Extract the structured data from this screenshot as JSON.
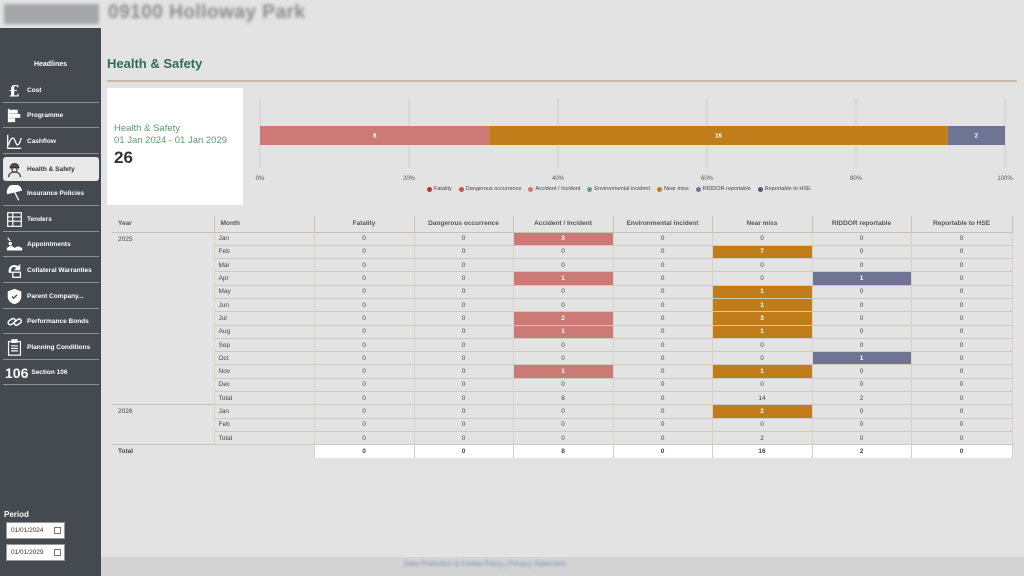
{
  "site": {
    "title": "09100 Holloway Park"
  },
  "sidebar": {
    "headlines_label": "Headlines",
    "items": [
      {
        "label": "Cost",
        "icon": "pound-icon"
      },
      {
        "label": "Programme",
        "icon": "programme-icon"
      },
      {
        "label": "Cashflow",
        "icon": "cashflow-icon"
      },
      {
        "label": "Health & Safety",
        "icon": "worker-icon",
        "active": true
      },
      {
        "label": "Insurance Policies",
        "icon": "umbrella-icon"
      },
      {
        "label": "Tenders",
        "icon": "tenders-icon"
      },
      {
        "label": "Appointments",
        "icon": "appointments-icon"
      },
      {
        "label": "Collateral Warranties",
        "icon": "warranties-icon"
      },
      {
        "label": "Parent Company...",
        "icon": "shield-icon"
      },
      {
        "label": "Performance Bonds",
        "icon": "bonds-icon"
      },
      {
        "label": "Planning Conditions",
        "icon": "clipboard-icon"
      },
      {
        "label": "Section 106",
        "icon_text": "106"
      }
    ],
    "period": {
      "label": "Period",
      "start": "01/01/2024",
      "end": "01/01/2029"
    }
  },
  "page": {
    "title": "Health & Safety"
  },
  "summary": {
    "title": "Health & Safety",
    "range": "01 Jan 2024 - 01 Jan 2029",
    "total": "26"
  },
  "colors": {
    "fatality": "#b03a2e",
    "dangerous": "#c9524a",
    "accident": "#cc7a75",
    "environmental": "#6b9e7a",
    "nearmiss": "#c27d1b",
    "riddor": "#6f7494",
    "hse": "#4a5a78"
  },
  "chart_data": {
    "type": "bar",
    "orientation": "horizontal-stacked-percent",
    "series": [
      {
        "name": "Fatality",
        "value": 0
      },
      {
        "name": "Dangerous occurrence",
        "value": 0
      },
      {
        "name": "Accident / Incident",
        "value": 8
      },
      {
        "name": "Environmental incident",
        "value": 0
      },
      {
        "name": "Near miss",
        "value": 16
      },
      {
        "name": "RIDDOR reportable",
        "value": 2
      },
      {
        "name": "Reportable to HSE",
        "value": 0
      }
    ],
    "xlim": [
      0,
      100
    ],
    "x_ticks": [
      "0%",
      "20%",
      "40%",
      "60%",
      "80%",
      "100%"
    ],
    "grid": true,
    "legend": "bottom"
  },
  "table": {
    "headers": [
      "Year",
      "Month",
      "Fatality",
      "Dangerous occurrence",
      "Accident / Incident",
      "Environmental incident",
      "Near miss",
      "RIDDOR reportable",
      "Reportable to HSE"
    ],
    "groups": [
      {
        "year": "2025",
        "rows": [
          {
            "month": "Jan",
            "values": [
              "0",
              "0",
              "3",
              "0",
              "0",
              "0",
              "0"
            ]
          },
          {
            "month": "Feb",
            "values": [
              "0",
              "0",
              "0",
              "0",
              "7",
              "0",
              "0"
            ]
          },
          {
            "month": "Mar",
            "values": [
              "0",
              "0",
              "0",
              "0",
              "0",
              "0",
              "0"
            ]
          },
          {
            "month": "Apr",
            "values": [
              "0",
              "0",
              "1",
              "0",
              "0",
              "1",
              "0"
            ]
          },
          {
            "month": "May",
            "values": [
              "0",
              "0",
              "0",
              "0",
              "1",
              "0",
              "0"
            ]
          },
          {
            "month": "Jun",
            "values": [
              "0",
              "0",
              "0",
              "0",
              "1",
              "0",
              "0"
            ]
          },
          {
            "month": "Jul",
            "values": [
              "0",
              "0",
              "2",
              "0",
              "3",
              "0",
              "0"
            ]
          },
          {
            "month": "Aug",
            "values": [
              "0",
              "0",
              "1",
              "0",
              "1",
              "0",
              "0"
            ]
          },
          {
            "month": "Sep",
            "values": [
              "0",
              "0",
              "0",
              "0",
              "0",
              "0",
              "0"
            ]
          },
          {
            "month": "Oct",
            "values": [
              "0",
              "0",
              "0",
              "0",
              "0",
              "1",
              "0"
            ]
          },
          {
            "month": "Nov",
            "values": [
              "0",
              "0",
              "1",
              "0",
              "1",
              "0",
              "0"
            ]
          },
          {
            "month": "Dec",
            "values": [
              "0",
              "0",
              "0",
              "0",
              "0",
              "0",
              "0"
            ]
          },
          {
            "month": "Total",
            "values": [
              "0",
              "0",
              "8",
              "0",
              "14",
              "2",
              "0"
            ],
            "is_total": true
          }
        ]
      },
      {
        "year": "2026",
        "rows": [
          {
            "month": "Jan",
            "values": [
              "0",
              "0",
              "0",
              "0",
              "2",
              "0",
              "0"
            ]
          },
          {
            "month": "Feb",
            "values": [
              "0",
              "0",
              "0",
              "0",
              "0",
              "0",
              "0"
            ]
          },
          {
            "month": "Total",
            "values": [
              "0",
              "0",
              "0",
              "0",
              "2",
              "0",
              "0"
            ],
            "is_total": true
          }
        ]
      }
    ],
    "grand_total": {
      "label": "Total",
      "values": [
        "0",
        "0",
        "8",
        "0",
        "16",
        "2",
        "0"
      ]
    }
  },
  "footer": {
    "link": "Data Protection & Cookie Policy | Privacy Statement"
  }
}
